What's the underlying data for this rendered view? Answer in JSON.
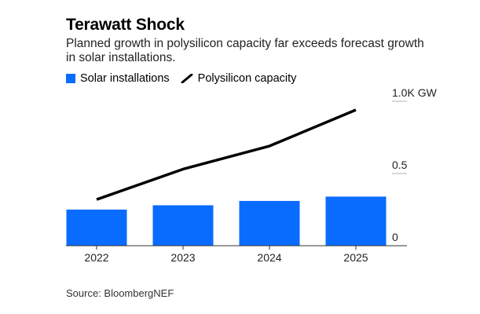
{
  "header": {
    "title": "Terawatt Shock",
    "subtitle": "Planned growth in polysilicon capacity far exceeds forecast growth in solar installations."
  },
  "legend": {
    "bar_label": "Solar installations",
    "line_label": "Polysilicon capacity"
  },
  "footer": {
    "source": "Source: BloombergNEF"
  },
  "colors": {
    "bar": "#0a6cff",
    "line": "#000000",
    "grid": "#b0b0b0"
  },
  "chart_data": {
    "type": "bar",
    "title": "Terawatt Shock",
    "categories": [
      "2022",
      "2023",
      "2024",
      "2025"
    ],
    "series": [
      {
        "name": "Solar installations",
        "type": "bar",
        "values": [
          0.25,
          0.28,
          0.31,
          0.34
        ]
      },
      {
        "name": "Polysilicon capacity",
        "type": "line",
        "values": [
          0.32,
          0.53,
          0.69,
          0.94
        ]
      }
    ],
    "ylim": [
      0,
      1.0
    ],
    "yticks": [
      {
        "value": 0,
        "label": "0"
      },
      {
        "value": 0.5,
        "label": "0.5"
      },
      {
        "value": 1.0,
        "label": "1.0K GW"
      }
    ],
    "xlabel": "",
    "ylabel": "",
    "legend_position": "top-left",
    "grid": true
  }
}
